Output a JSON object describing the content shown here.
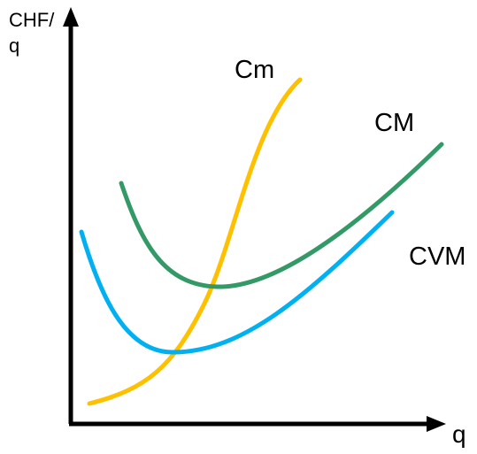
{
  "axes": {
    "y_label_line1": "CHF/",
    "y_label_line2": "q",
    "x_label": "q"
  },
  "curves": [
    {
      "key": "cm",
      "label": "Cm",
      "color": "#FFC000"
    },
    {
      "key": "CM",
      "label": "CM",
      "color": "#339966"
    },
    {
      "key": "cvm",
      "label": "CVM",
      "color": "#00B0F0"
    }
  ]
}
